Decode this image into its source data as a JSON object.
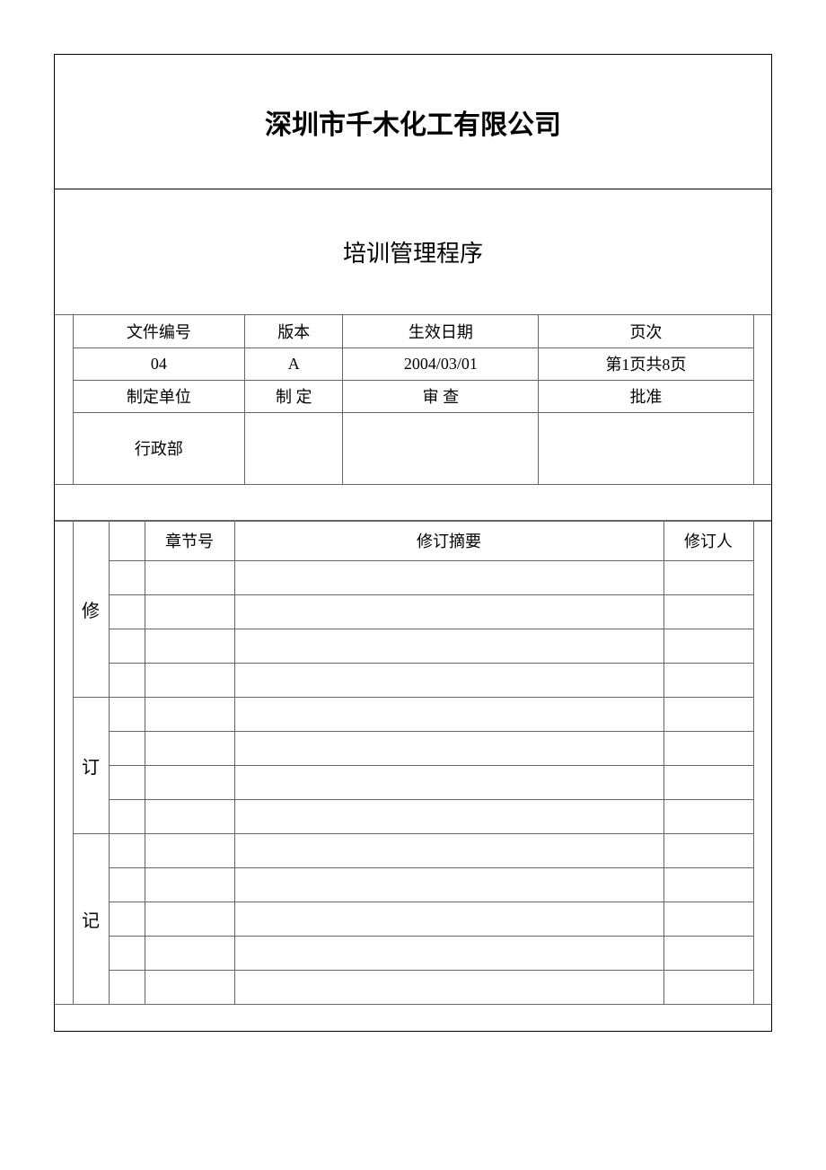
{
  "company_name": "深圳市千木化工有限公司",
  "doc_title": "培训管理程序",
  "meta": {
    "headers": {
      "doc_no": "文件编号",
      "version": "版本",
      "effective_date": "生效日期",
      "page": "页次"
    },
    "values": {
      "doc_no": "04",
      "version": "A",
      "effective_date": "2004/03/01",
      "page": "第1页共8页"
    },
    "row3": {
      "issuing_unit": "制定单位",
      "prepared_by": "制  定",
      "reviewed_by": "审  查",
      "approved_by": "批准"
    },
    "row4": {
      "issuing_unit": "行政部",
      "prepared_by": "",
      "reviewed_by": "",
      "approved_by": ""
    }
  },
  "revision": {
    "side_label": {
      "c1": "修",
      "c2": "订",
      "c3": "记"
    },
    "headers": {
      "section_no": "章节号",
      "summary": "修订摘要",
      "reviser": "修订人"
    },
    "rows": [
      {
        "a": "",
        "b": "",
        "c": "",
        "d": ""
      },
      {
        "a": "",
        "b": "",
        "c": "",
        "d": ""
      },
      {
        "a": "",
        "b": "",
        "c": "",
        "d": ""
      },
      {
        "a": "",
        "b": "",
        "c": "",
        "d": ""
      },
      {
        "a": "",
        "b": "",
        "c": "",
        "d": ""
      },
      {
        "a": "",
        "b": "",
        "c": "",
        "d": ""
      },
      {
        "a": "",
        "b": "",
        "c": "",
        "d": ""
      },
      {
        "a": "",
        "b": "",
        "c": "",
        "d": ""
      },
      {
        "a": "",
        "b": "",
        "c": "",
        "d": ""
      },
      {
        "a": "",
        "b": "",
        "c": "",
        "d": ""
      },
      {
        "a": "",
        "b": "",
        "c": "",
        "d": ""
      },
      {
        "a": "",
        "b": "",
        "c": "",
        "d": ""
      },
      {
        "a": "",
        "b": "",
        "c": "",
        "d": ""
      }
    ]
  },
  "colors": {
    "border_main": "#000000",
    "border_inner": "#666666",
    "background": "#ffffff",
    "text": "#000000"
  }
}
